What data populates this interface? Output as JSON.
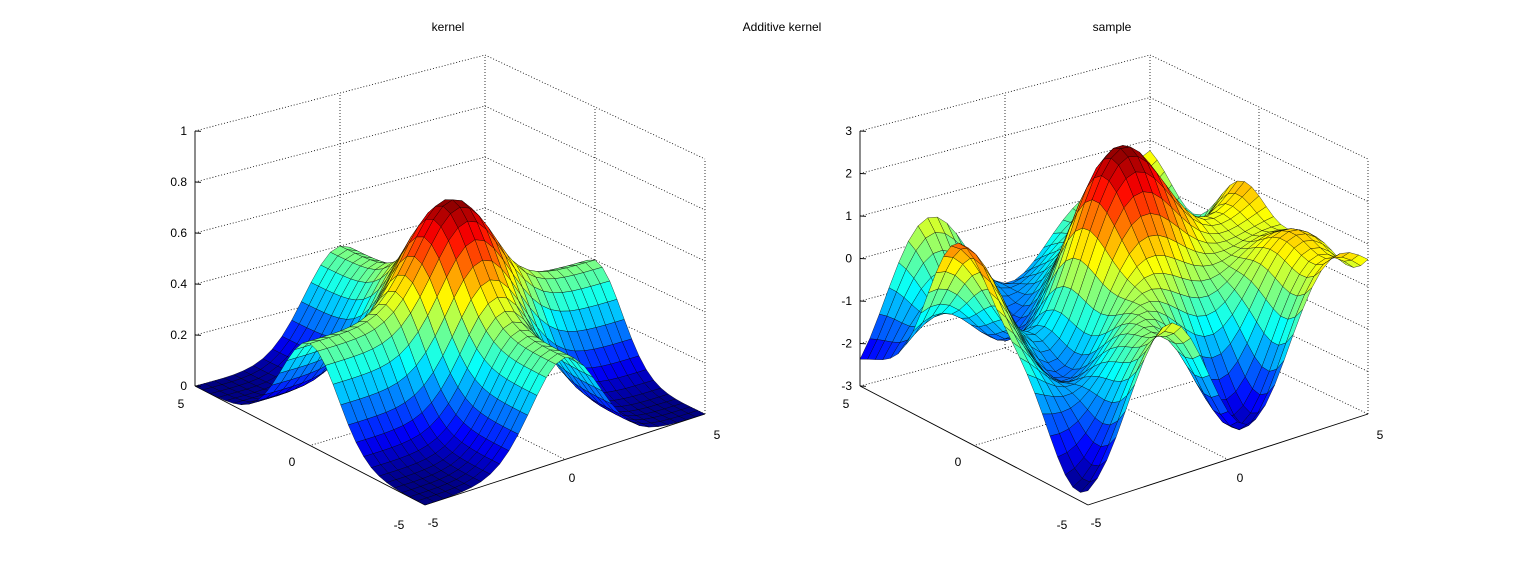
{
  "figure_title": "Additive kernel",
  "chart_data": [
    {
      "type": "surface",
      "title": "kernel",
      "xlabel": "",
      "ylabel": "",
      "zlabel": "",
      "x_range": [
        -5,
        5
      ],
      "y_range": [
        -5,
        5
      ],
      "zlim": [
        0,
        1
      ],
      "x_ticks": [
        "-5",
        "0",
        "5"
      ],
      "y_ticks": [
        "-5",
        "0",
        "5"
      ],
      "z_ticks": [
        "0",
        "0.2",
        "0.4",
        "0.6",
        "0.8",
        "1"
      ],
      "grid": true,
      "colormap": "jet",
      "peak_value": 0.8,
      "ridge_value": 0.4,
      "mesh_points": 31
    },
    {
      "type": "surface",
      "title": "sample",
      "xlabel": "",
      "ylabel": "",
      "zlabel": "",
      "x_range": [
        -5,
        5
      ],
      "y_range": [
        -5,
        5
      ],
      "zlim": [
        -3,
        3
      ],
      "x_ticks": [
        "-5",
        "0",
        "5"
      ],
      "y_ticks": [
        "-5",
        "0",
        "5"
      ],
      "z_ticks": [
        "-3",
        "-2",
        "-1",
        "0",
        "1",
        "2",
        "3"
      ],
      "grid": true,
      "colormap": "jet",
      "value_range": [
        -2.8,
        2.7
      ],
      "mesh_points": 31
    }
  ]
}
